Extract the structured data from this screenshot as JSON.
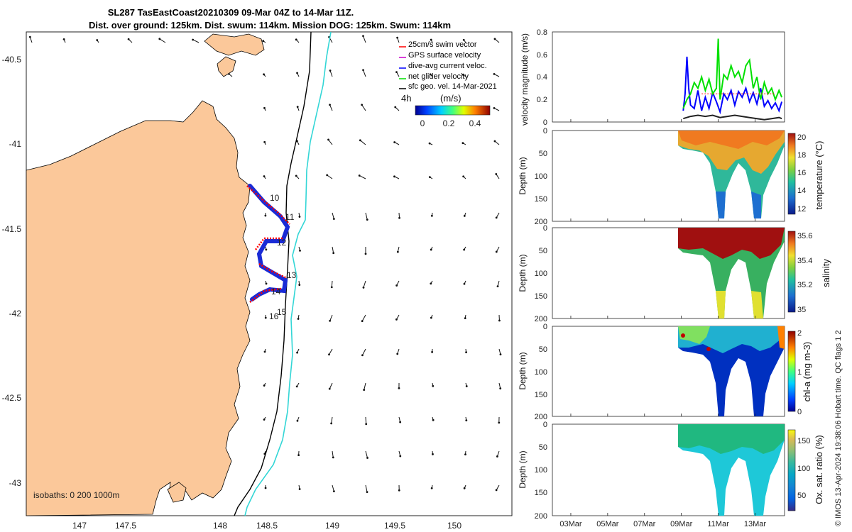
{
  "title": {
    "line1": "SL287 TasEastCoast20210309 09-Mar 04Z to 14-Mar 11Z.",
    "line2": "Dist. over ground: 125km. Dist. swum: 114km. Mission DOG: 125km. Swum: 114km"
  },
  "map": {
    "lon_ticks": [
      "147",
      "147.5",
      "148",
      "148.5",
      "149",
      "149.5",
      "150"
    ],
    "lat_ticks": [
      "-40.5",
      "-41",
      "-41.5",
      "-42",
      "-42.5",
      "-43"
    ],
    "isobath_label": "isobaths: 0   200 1000m",
    "day_labels": [
      "10",
      "11",
      "12",
      "13",
      "14",
      "15",
      "16"
    ],
    "legend": [
      {
        "label": "25cm/s swim vector",
        "color": "#ff0000"
      },
      {
        "label": "GPS surface velocity",
        "color": "#cc00cc"
      },
      {
        "label": "dive-avg current veloc.",
        "color": "#0000ff"
      },
      {
        "label": "net glider velocity",
        "color": "#00e000"
      },
      {
        "label": "sfc geo. vel. 14-Mar-2021",
        "color": "#000000"
      }
    ],
    "scale_label": "4h",
    "colorbar": {
      "unit": "(m/s)",
      "ticks": [
        "0",
        "0.2",
        "0.4"
      ]
    },
    "colors": {
      "land": "#fbc89a",
      "isobath": "#000000",
      "isobath_1000": "#33d6d6"
    }
  },
  "chart_data": [
    {
      "type": "line",
      "name": "velocity magnitude",
      "ylabel": "velocity magnitude (m/s)",
      "ylim": [
        0,
        0.8
      ],
      "yticks": [
        "0",
        "0.2",
        "0.4",
        "0.6",
        "0.8"
      ],
      "series": [
        {
          "name": "dive-avg current veloc.",
          "color": "#0000ff",
          "t": [
            9.1,
            9.2,
            9.3,
            9.4,
            9.5,
            9.7,
            9.9,
            10.1,
            10.3,
            10.5,
            10.7,
            10.9,
            11.1,
            11.3,
            11.5,
            11.7,
            11.9,
            12.1,
            12.3,
            12.5,
            12.7,
            12.9,
            13.1,
            13.3,
            13.5,
            13.7,
            13.9,
            14.1,
            14.3,
            14.45
          ],
          "values": [
            0.1,
            0.25,
            0.58,
            0.3,
            0.15,
            0.12,
            0.28,
            0.1,
            0.22,
            0.12,
            0.26,
            0.18,
            0.09,
            0.25,
            0.2,
            0.28,
            0.15,
            0.27,
            0.22,
            0.3,
            0.18,
            0.26,
            0.16,
            0.3,
            0.14,
            0.19,
            0.12,
            0.17,
            0.1,
            0.18
          ]
        },
        {
          "name": "net glider velocity",
          "color": "#00e000",
          "t": [
            9.1,
            9.3,
            9.5,
            9.7,
            9.9,
            10.1,
            10.3,
            10.5,
            10.7,
            10.9,
            11.0,
            11.1,
            11.3,
            11.5,
            11.7,
            11.9,
            12.1,
            12.3,
            12.5,
            12.7,
            12.9,
            13.1,
            13.3,
            13.5,
            13.7,
            13.9,
            14.1,
            14.3,
            14.45
          ],
          "values": [
            0.12,
            0.2,
            0.25,
            0.35,
            0.3,
            0.4,
            0.28,
            0.38,
            0.25,
            0.3,
            0.74,
            0.2,
            0.42,
            0.38,
            0.5,
            0.4,
            0.45,
            0.35,
            0.5,
            0.55,
            0.3,
            0.4,
            0.2,
            0.35,
            0.25,
            0.3,
            0.2,
            0.28,
            0.22
          ]
        },
        {
          "name": "25cm/s swim vector",
          "color": "#ff0000",
          "t": [
            10.1,
            10.5,
            10.9,
            11.3,
            11.7,
            12.1,
            12.5,
            12.9,
            13.3,
            13.7,
            14.1
          ],
          "values": [
            0.25,
            0.25,
            0.25,
            0.25,
            0.25,
            0.25,
            0.25,
            0.25,
            0.25,
            0.25,
            0.25
          ]
        },
        {
          "name": "sfc geo. vel.",
          "color": "#222222",
          "t": [
            9.1,
            9.5,
            9.9,
            10.3,
            10.7,
            11.1,
            11.5,
            11.9,
            12.3,
            12.7,
            13.1,
            13.5,
            13.9,
            14.3,
            14.45
          ],
          "values": [
            0.03,
            0.05,
            0.06,
            0.05,
            0.06,
            0.04,
            0.05,
            0.06,
            0.05,
            0.04,
            0.03,
            0.02,
            0.03,
            0.04,
            0.03
          ]
        }
      ]
    },
    {
      "type": "heatmap",
      "name": "temperature",
      "ylabel": "Depth (m)",
      "cblabel": "temperature (°C)",
      "ylim": [
        0,
        200
      ],
      "yticks": [
        "0",
        "50",
        "100",
        "150",
        "200"
      ],
      "clim": [
        11,
        20.5
      ],
      "cbticks": [
        "12",
        "14",
        "16",
        "18",
        "20"
      ]
    },
    {
      "type": "heatmap",
      "name": "salinity",
      "ylabel": "Depth (m)",
      "cblabel": "salinity",
      "ylim": [
        0,
        200
      ],
      "yticks": [
        "0",
        "50",
        "100",
        "150",
        "200"
      ],
      "clim": [
        34.95,
        35.65
      ],
      "cbticks": [
        "35",
        "35.2",
        "35.4",
        "35.6"
      ]
    },
    {
      "type": "heatmap",
      "name": "chl-a",
      "ylabel": "Depth (m)",
      "cblabel": "chl-a (mg m-3)",
      "ylim": [
        0,
        200
      ],
      "yticks": [
        "0",
        "50",
        "100",
        "150",
        "200"
      ],
      "clim": [
        0,
        2
      ],
      "cbticks": [
        "0",
        "1",
        "2"
      ]
    },
    {
      "type": "heatmap",
      "name": "oxygen saturation",
      "ylabel": "Depth (m)",
      "cblabel": "Ox. sat. ratio (%)",
      "ylim": [
        0,
        200
      ],
      "yticks": [
        "0",
        "50",
        "100",
        "150",
        "200"
      ],
      "clim": [
        25,
        175
      ],
      "cbticks": [
        "50",
        "100",
        "150"
      ]
    }
  ],
  "time_axis": {
    "ticks": [
      "03Mar",
      "05Mar",
      "07Mar",
      "09Mar",
      "11Mar",
      "13Mar"
    ],
    "range_days": [
      2.0,
      14.6
    ]
  },
  "side_caption": "© IMOS 13-Apr-2024 19:38:06 Hobart time. QC flags 1  2"
}
